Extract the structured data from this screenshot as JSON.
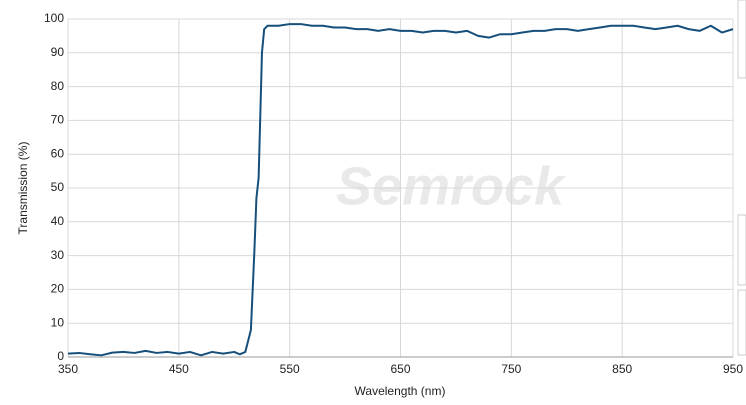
{
  "chart_data": {
    "type": "line",
    "xlabel": "Wavelength (nm)",
    "ylabel": "Transmission (%)",
    "watermark": "Semrock",
    "x": [
      350,
      360,
      370,
      380,
      390,
      400,
      410,
      420,
      430,
      440,
      450,
      460,
      470,
      480,
      490,
      500,
      505,
      510,
      515,
      518,
      520,
      522,
      525,
      527,
      530,
      540,
      550,
      560,
      570,
      580,
      590,
      600,
      610,
      620,
      630,
      640,
      650,
      660,
      670,
      680,
      690,
      700,
      710,
      720,
      730,
      740,
      750,
      760,
      770,
      780,
      790,
      800,
      810,
      820,
      830,
      840,
      850,
      860,
      870,
      880,
      890,
      900,
      910,
      920,
      930,
      940,
      950
    ],
    "values": [
      1,
      1.2,
      0.8,
      0.5,
      1.3,
      1.5,
      1.2,
      1.8,
      1.2,
      1.5,
      1,
      1.5,
      0.5,
      1.5,
      1,
      1.5,
      0.8,
      1.5,
      8,
      30,
      47,
      53,
      90,
      97,
      98,
      98,
      98.5,
      98.5,
      98,
      98,
      97.5,
      97.5,
      97,
      97,
      96.5,
      97,
      96.5,
      96.5,
      96,
      96.5,
      96.5,
      96,
      96.5,
      95,
      94.5,
      95.5,
      95.5,
      96,
      96.5,
      96.5,
      97,
      97,
      96.5,
      97,
      97.5,
      98,
      98,
      98,
      97.5,
      97,
      97.5,
      98,
      97,
      96.5,
      98,
      96,
      97
    ],
    "color": "#174f7b",
    "xlim": [
      350,
      950
    ],
    "xticks": [
      350,
      450,
      550,
      650,
      750,
      850,
      950
    ],
    "ylim": [
      0,
      100
    ],
    "yticks": [
      0,
      10,
      20,
      30,
      40,
      50,
      60,
      70,
      80,
      90,
      100
    ],
    "grid": true
  }
}
